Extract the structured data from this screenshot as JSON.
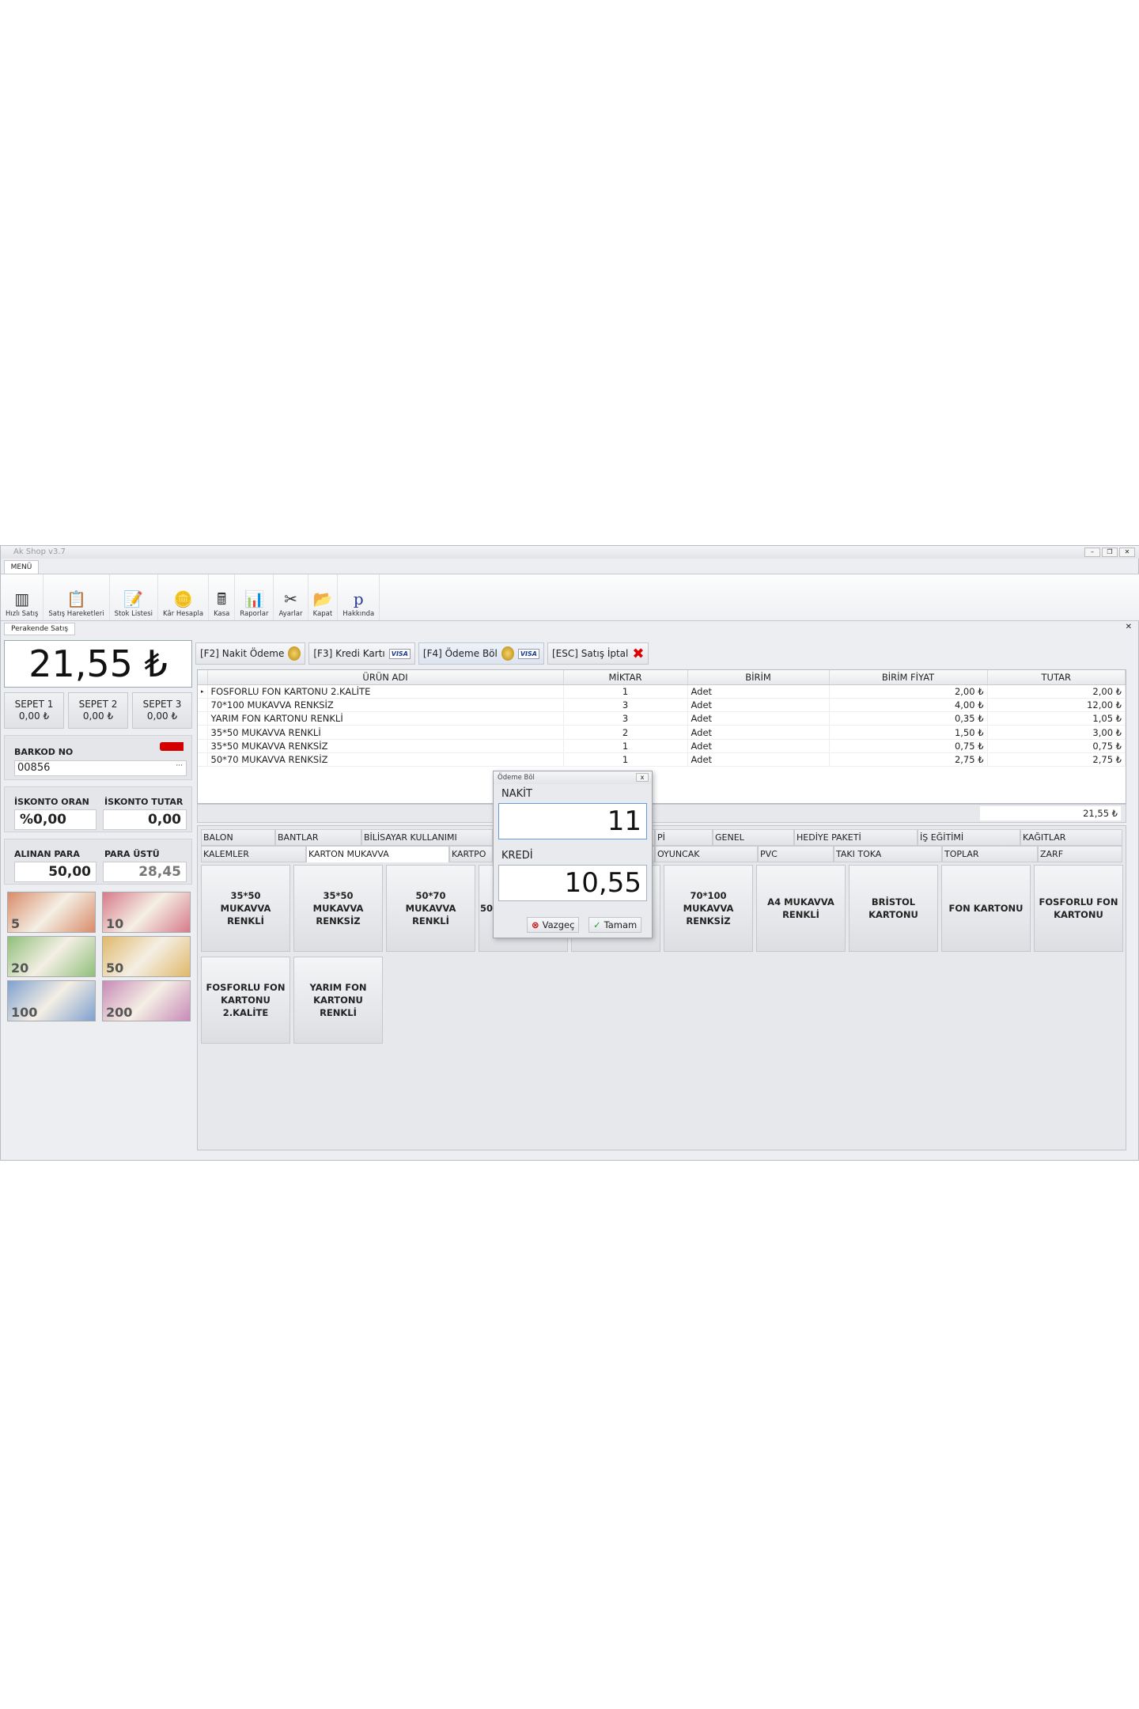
{
  "window": {
    "title": "Ak Shop v3.7",
    "menu_tab": "MENÜ",
    "doc_tab": "Perakende Satış"
  },
  "ribbon": [
    {
      "label": "Hızlı Satış",
      "icon": "barcode-icon"
    },
    {
      "label": "Satış Hareketleri",
      "icon": "clipboard-icon"
    },
    {
      "label": "Stok Listesi",
      "icon": "note-icon"
    },
    {
      "label": "Kâr Hesapla",
      "icon": "coins-icon"
    },
    {
      "label": "Kasa",
      "icon": "cash-register-icon"
    },
    {
      "label": "Raporlar",
      "icon": "chart-icon"
    },
    {
      "label": "Ayarlar",
      "icon": "tools-icon"
    },
    {
      "label": "Kapat",
      "icon": "folder-exit-icon"
    },
    {
      "label": "Hakkında",
      "icon": "p-logo-icon"
    }
  ],
  "left": {
    "total": "21,55 ₺",
    "baskets": [
      {
        "label": "SEPET 1",
        "amount": "0,00 ₺"
      },
      {
        "label": "SEPET 2",
        "amount": "0,00 ₺"
      },
      {
        "label": "SEPET 3",
        "amount": "0,00 ₺"
      }
    ],
    "barcode_label": "BARKOD NO",
    "barcode_value": "00856",
    "discount_rate_label": "İSKONTO ORAN",
    "discount_rate": "%0,00",
    "discount_amount_label": "İSKONTO TUTAR",
    "discount_amount": "0,00",
    "received_label": "ALINAN PARA",
    "received": "50,00",
    "change_label": "PARA ÜSTÜ",
    "change": "28,45",
    "banknotes": [
      "5",
      "10",
      "20",
      "50",
      "100",
      "200"
    ]
  },
  "paybar": {
    "cash": "[F2] Nakit Ödeme",
    "card": "[F3] Kredi Kartı",
    "split": "[F4] Ödeme Böl",
    "cancel": "[ESC] Satış İptal",
    "visa": "VISA"
  },
  "grid": {
    "headers": [
      "ÜRÜN ADI",
      "MİKTAR",
      "BİRİM",
      "BİRİM FİYAT",
      "TUTAR"
    ],
    "rows": [
      [
        "FOSFORLU FON KARTONU 2.KALİTE",
        "1",
        "Adet",
        "2,00 ₺",
        "2,00 ₺"
      ],
      [
        "70*100 MUKAVVA RENKSİZ",
        "3",
        "Adet",
        "4,00 ₺",
        "12,00 ₺"
      ],
      [
        "YARIM FON KARTONU RENKLİ",
        "3",
        "Adet",
        "0,35 ₺",
        "1,05 ₺"
      ],
      [
        "35*50 MUKAVVA RENKLİ",
        "2",
        "Adet",
        "1,50 ₺",
        "3,00 ₺"
      ],
      [
        "35*50 MUKAVVA RENKSİZ",
        "1",
        "Adet",
        "0,75 ₺",
        "0,75 ₺"
      ],
      [
        "50*70 MUKAVVA RENKSİZ",
        "1",
        "Adet",
        "2,75 ₺",
        "2,75 ₺"
      ]
    ],
    "footer_total": "21,55 ₺"
  },
  "categories": {
    "row1": [
      "BALON",
      "BANTLAR",
      "BİLİSAYAR KULLANIMI",
      "",
      "Pİ",
      "GENEL",
      "HEDİYE PAKETİ",
      "İŞ EĞİTİMİ",
      "KAĞITLAR"
    ],
    "row2": [
      "KALEMLER",
      "KARTON MUKAVVA",
      "KARTPO",
      "",
      "OYUNCAK",
      "PVC",
      "TAKI TOKA",
      "TOPLAR",
      "ZARF"
    ],
    "selected": "KARTON MUKAVVA"
  },
  "products": [
    "35*50 MUKAVVA RENKLİ",
    "35*50 MUKAVVA RENKSİZ",
    "50*70 MUKAVVA RENKLİ",
    "50",
    "",
    "70*100 MUKAVVA RENKSİZ",
    "A4 MUKAVVA RENKLİ",
    "BRİSTOL KARTONU",
    "FON KARTONU",
    "FOSFORLU FON KARTONU",
    "FOSFORLU FON KARTONU 2.KALİTE",
    "YARIM FON KARTONU RENKLİ"
  ],
  "dialog": {
    "title": "Ödeme Böl",
    "cash_label": "NAKİT",
    "cash_value": "11",
    "credit_label": "KREDİ",
    "credit_value": "10,55",
    "cancel": "Vazgeç",
    "ok": "Tamam"
  }
}
